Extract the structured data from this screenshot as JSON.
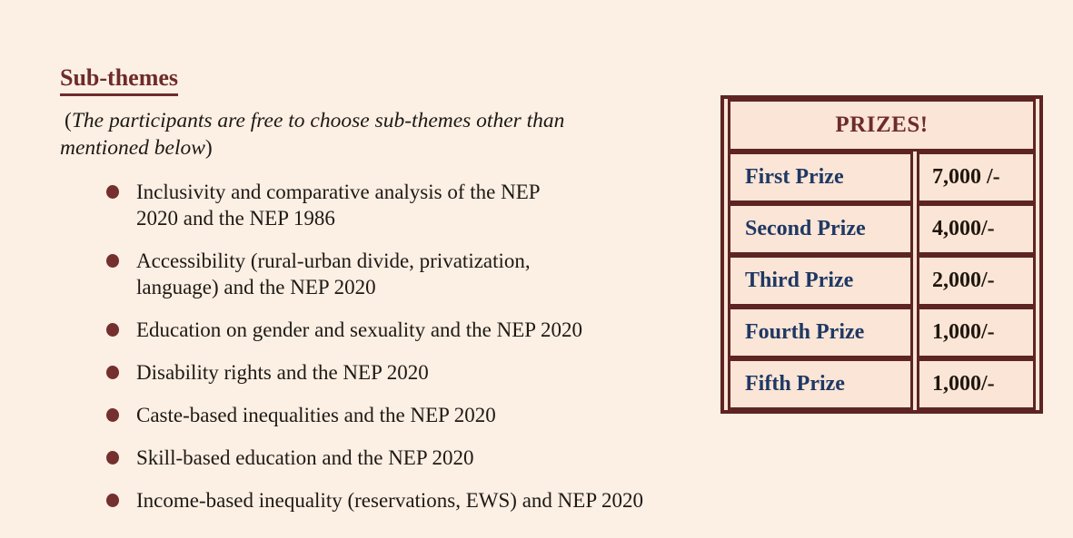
{
  "document": {
    "heading": "Sub-themes",
    "note": {
      "open_paren": "(",
      "line1": "The participants are free to choose sub-themes other than",
      "line2": "mentioned below",
      "close_paren": ")"
    },
    "bullet_icon": "filled-circle"
  },
  "themes": {
    "items": [
      {
        "line1": "Inclusivity and comparative analysis of the NEP",
        "line2": "2020 and the NEP 1986"
      },
      {
        "line1": "Accessibility (rural-urban divide, privatization,",
        "line2": "language) and the NEP 2020"
      },
      {
        "line1": "Education on gender and sexuality and the NEP 2020",
        "line2": ""
      },
      {
        "line1": "Disability rights and the NEP 2020",
        "line2": ""
      },
      {
        "line1": "Caste-based inequalities and the NEP 2020",
        "line2": ""
      },
      {
        "line1": "Skill-based education and the NEP 2020",
        "line2": ""
      },
      {
        "line1": "Income-based inequality (reservations, EWS) and NEP 2020",
        "line2": ""
      }
    ]
  },
  "prizes": {
    "header": "PRIZES!",
    "rows": [
      {
        "label": "First Prize",
        "amount": "7,000 /-"
      },
      {
        "label": "Second Prize",
        "amount": "4,000/-"
      },
      {
        "label": "Third Prize",
        "amount": "2,000/-"
      },
      {
        "label": "Fourth Prize",
        "amount": "1,000/-"
      },
      {
        "label": "Fifth Prize",
        "amount": "1,000/-"
      }
    ]
  },
  "colors": {
    "page_background": "#fcefe4",
    "table_cell_background": "#fae5d6",
    "maroon_heading": "#6e2b2b",
    "maroon_border": "#5e2424",
    "navy_label": "#1f3864",
    "body_text": "#1e1914",
    "bullet": "#742f2f",
    "amount_text": "#20160e"
  }
}
